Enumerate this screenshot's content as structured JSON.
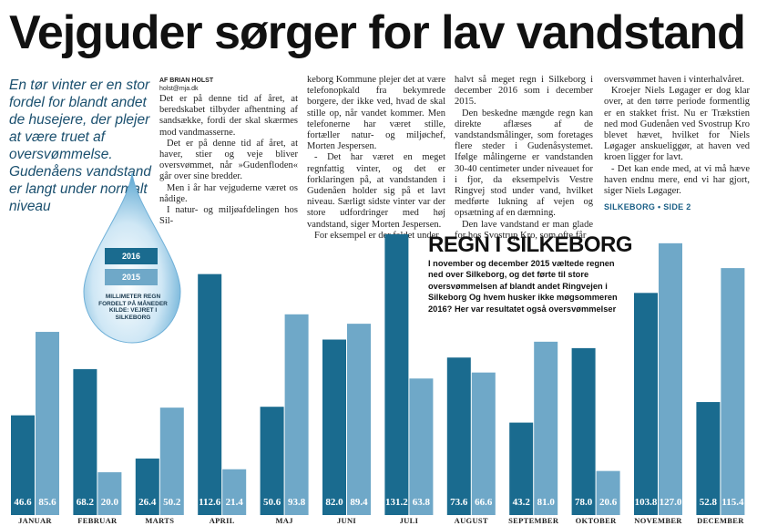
{
  "article": {
    "headline": "Vejguder sørger for lav vandstand",
    "lead": "En tør vinter er en stor fordel for blandt andet de husejere, der plejer at være truet af oversvømmelse. Gudenåens vandstand er langt under normalt niveau",
    "byline_label": "AF BRIAN HOLST",
    "byline_email": "holst@mja.dk",
    "col1": [
      "Det er på denne tid af året, at beredskabet tilbyder afhentning af sandsække, fordi der skal skærmes mod vandmasserne.",
      "Det er på denne tid af året, at haver, stier og veje bliver oversvømmet, når »Gudenfloden« går over sine bredder.",
      "Men i år har vejguderne været os nådige.",
      "I natur- og miljøafdelingen hos Sil-"
    ],
    "col2": [
      "keborg Kommune plejer det at være telefonopkald fra bekymrede borgere, der ikke ved, hvad de skal stille op, når vandet kommer. Men telefonerne har været stille, fortæller natur- og miljøchef, Morten Jespersen.",
      "- Det har været en meget regnfattig vinter, og det er forklaringen på, at vandstanden i Gudenåen holder sig på et lavt niveau. Særligt sidste vinter var der store udfordringer med høj vandstand, siger Morten Jespersen.",
      "For eksempel er der faldet under"
    ],
    "col3": [
      "halvt så meget regn i Silkeborg i december 2016 som i december 2015.",
      "Den beskedne mængde regn kan direkte aflæses af de vandstandsmålinger, som foretages flere steder i Gudenåsystemet. Ifølge målingerne er vandstanden 30-40 centimeter under niveauet for i fjor, da eksempelvis Vestre Ringvej stod under vand, hvilket medførte lukning af vejen og opsætning af en dæmning.",
      "Den lave vandstand er man glade for hos Svostrup Kro, som ofte får"
    ],
    "col4": [
      "oversvømmet haven i vinterhalvåret.",
      "Kroejer Niels Løgager er dog klar over, at den tørre periode formentlig er en stakket frist. Nu er Trækstien ned mod Gudenåen ved Svostrup Kro blevet hævet, hvilket for Niels Løgager anskueliggør, at haven ved kroen ligger for lavt.",
      "- Det kan ende med, at vi må hæve haven endnu mere, end vi har gjort, siger Niels Løgager."
    ],
    "section_tag": "SILKEBORG • SIDE 2"
  },
  "legend": {
    "label_2016": "2016",
    "label_2015": "2015",
    "caption": "MILLIMETER REGN FORDELT PÅ MÅNEDER KILDE: VEJRET I SILKEBORG"
  },
  "chart_heading": {
    "title": "REGN I SILKEBORG",
    "subtitle": "I november og december 2015 væltede regnen ned over Silkeborg, og det førte til store oversvømmelsen af blandt andet Ringvejen i Silkeborg Og hvem husker ikke møgsommeren 2016? Her var resultatet også oversvømmelser"
  },
  "colors": {
    "series_2016": "#1a6b8f",
    "series_2015": "#6fa8c8"
  },
  "chart_data": {
    "type": "bar",
    "title": "REGN I SILKEBORG",
    "xlabel": "",
    "ylabel": "",
    "categories": [
      "JANUAR",
      "FEBRUAR",
      "MARTS",
      "APRIL",
      "MAJ",
      "JUNI",
      "JULI",
      "AUGUST",
      "SEPTEMBER",
      "OKTOBER",
      "NOVEMBER",
      "DECEMBER"
    ],
    "series": [
      {
        "name": "2016",
        "values": [
          46.6,
          68.2,
          26.4,
          112.6,
          50.6,
          82.0,
          131.2,
          73.6,
          43.2,
          78.0,
          103.8,
          52.8
        ],
        "labels": [
          "46.6",
          "68.2",
          "26.4",
          "112.6",
          "50.6",
          "82.0",
          "131.2",
          "73.6",
          "43.2",
          "78.0",
          "103.8",
          "52.8"
        ]
      },
      {
        "name": "2015",
        "values": [
          85.6,
          20.0,
          50.2,
          21.4,
          93.8,
          89.4,
          63.8,
          66.6,
          81.0,
          20.6,
          127.0,
          115.4
        ],
        "labels": [
          "85.6",
          "20.0",
          "50.2",
          "21.4",
          "93.8",
          "89.4",
          "63.8",
          "66.6",
          "81.0",
          "20.6",
          "127.0",
          "115.4"
        ]
      }
    ],
    "ylim": [
      0,
      131.2
    ],
    "grid": false,
    "legend": "left"
  }
}
